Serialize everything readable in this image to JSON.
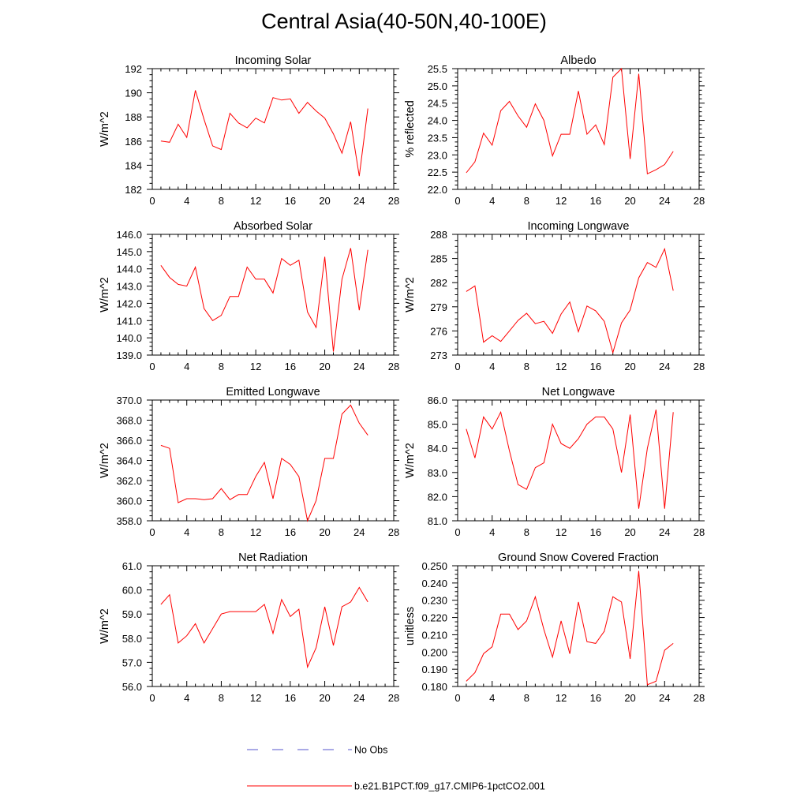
{
  "figure": {
    "title": "Central Asia(40-50N,40-100E)"
  },
  "legend": {
    "entries": [
      {
        "label": "No Obs",
        "color": "#5555cc",
        "style": "dashed"
      },
      {
        "label": "b.e21.B1PCT.f09_g17.CMIP6-1pctCO2.001",
        "color": "#ff0000",
        "style": "solid"
      }
    ]
  },
  "chart_data": [
    {
      "type": "line",
      "title": "Incoming Solar",
      "xlabel": "",
      "ylabel": "W/m^2",
      "xlim": [
        0,
        28
      ],
      "ylim": [
        182,
        192
      ],
      "xticks": [
        "0",
        "4",
        "8",
        "12",
        "16",
        "20",
        "24",
        "28"
      ],
      "yticks": [
        "182",
        "184",
        "186",
        "188",
        "190",
        "192"
      ],
      "series": [
        {
          "color": "#ff0000",
          "x": [
            1,
            2,
            3,
            4,
            5,
            6,
            7,
            8,
            9,
            10,
            11,
            12,
            13,
            14,
            15,
            16,
            17,
            18,
            19,
            20,
            21,
            22,
            23,
            24,
            25
          ],
          "values": [
            186.0,
            185.9,
            187.4,
            186.3,
            190.2,
            187.8,
            185.6,
            185.3,
            188.3,
            187.5,
            187.1,
            187.9,
            187.5,
            189.6,
            189.4,
            189.5,
            188.3,
            189.2,
            188.5,
            187.9,
            186.6,
            185.0,
            187.6,
            183.1,
            188.7
          ]
        }
      ]
    },
    {
      "type": "line",
      "title": "Albedo",
      "xlabel": "",
      "ylabel": "% reflected",
      "xlim": [
        0,
        28
      ],
      "ylim": [
        22.0,
        25.5
      ],
      "xticks": [
        "0",
        "4",
        "8",
        "12",
        "16",
        "20",
        "24",
        "28"
      ],
      "yticks": [
        "22.0",
        "22.5",
        "23.0",
        "23.5",
        "24.0",
        "24.5",
        "25.0",
        "25.5"
      ],
      "series": [
        {
          "color": "#ff0000",
          "x": [
            1,
            2,
            3,
            4,
            5,
            6,
            7,
            8,
            9,
            10,
            11,
            12,
            13,
            14,
            15,
            16,
            17,
            18,
            19,
            20,
            21,
            22,
            23,
            24,
            25
          ],
          "values": [
            22.48,
            22.8,
            23.63,
            23.28,
            24.28,
            24.55,
            24.13,
            23.8,
            24.48,
            24.0,
            22.97,
            23.6,
            23.6,
            24.85,
            23.6,
            23.87,
            23.3,
            25.25,
            25.5,
            22.88,
            25.35,
            22.45,
            22.57,
            22.72,
            23.1
          ]
        }
      ]
    },
    {
      "type": "line",
      "title": "Absorbed Solar",
      "xlabel": "",
      "ylabel": "W/m^2",
      "xlim": [
        0,
        28
      ],
      "ylim": [
        139.0,
        146.0
      ],
      "xticks": [
        "0",
        "4",
        "8",
        "12",
        "16",
        "20",
        "24",
        "28"
      ],
      "yticks": [
        "139.0",
        "140.0",
        "141.0",
        "142.0",
        "143.0",
        "144.0",
        "145.0",
        "146.0"
      ],
      "series": [
        {
          "color": "#ff0000",
          "x": [
            1,
            2,
            3,
            4,
            5,
            6,
            7,
            8,
            9,
            10,
            11,
            12,
            13,
            14,
            15,
            16,
            17,
            18,
            19,
            20,
            21,
            22,
            23,
            24,
            25
          ],
          "values": [
            144.2,
            143.5,
            143.1,
            143.0,
            144.1,
            141.7,
            141.0,
            141.3,
            142.4,
            142.4,
            144.1,
            143.4,
            143.4,
            142.6,
            144.6,
            144.2,
            144.5,
            141.5,
            140.6,
            144.7,
            139.2,
            143.4,
            145.2,
            141.6,
            145.1
          ]
        }
      ]
    },
    {
      "type": "line",
      "title": "Incoming Longwave",
      "xlabel": "",
      "ylabel": "W/m^2",
      "xlim": [
        0,
        28
      ],
      "ylim": [
        273,
        288
      ],
      "xticks": [
        "0",
        "4",
        "8",
        "12",
        "16",
        "20",
        "24",
        "28"
      ],
      "yticks": [
        "273",
        "276",
        "279",
        "282",
        "285",
        "288"
      ],
      "series": [
        {
          "color": "#ff0000",
          "x": [
            1,
            2,
            3,
            4,
            5,
            6,
            7,
            8,
            9,
            10,
            11,
            12,
            13,
            14,
            15,
            16,
            17,
            18,
            19,
            20,
            21,
            22,
            23,
            24,
            25
          ],
          "values": [
            280.9,
            281.6,
            274.6,
            275.4,
            274.7,
            276.0,
            277.3,
            278.2,
            276.9,
            277.2,
            275.7,
            278.1,
            279.6,
            275.9,
            279.1,
            278.5,
            277.2,
            273.3,
            277.0,
            278.6,
            282.6,
            284.5,
            283.9,
            286.2,
            281.0
          ]
        }
      ]
    },
    {
      "type": "line",
      "title": "Emitted Longwave",
      "xlabel": "",
      "ylabel": "W/m^2",
      "xlim": [
        0,
        28
      ],
      "ylim": [
        358.0,
        370.0
      ],
      "xticks": [
        "0",
        "4",
        "8",
        "12",
        "16",
        "20",
        "24",
        "28"
      ],
      "yticks": [
        "358.0",
        "360.0",
        "362.0",
        "364.0",
        "366.0",
        "368.0",
        "370.0"
      ],
      "series": [
        {
          "color": "#ff0000",
          "x": [
            1,
            2,
            3,
            4,
            5,
            6,
            7,
            8,
            9,
            10,
            11,
            12,
            13,
            14,
            15,
            16,
            17,
            18,
            19,
            20,
            21,
            22,
            23,
            24,
            25
          ],
          "values": [
            365.5,
            365.2,
            359.8,
            360.2,
            360.2,
            360.1,
            360.2,
            361.2,
            360.1,
            360.6,
            360.6,
            362.4,
            363.8,
            360.2,
            364.2,
            363.6,
            362.4,
            358.0,
            360.0,
            364.2,
            364.2,
            368.6,
            369.5,
            367.7,
            366.5
          ]
        }
      ]
    },
    {
      "type": "line",
      "title": "Net Longwave",
      "xlabel": "",
      "ylabel": "W/m^2",
      "xlim": [
        0,
        28
      ],
      "ylim": [
        81.0,
        86.0
      ],
      "xticks": [
        "0",
        "4",
        "8",
        "12",
        "16",
        "20",
        "24",
        "28"
      ],
      "yticks": [
        "81.0",
        "82.0",
        "83.0",
        "84.0",
        "85.0",
        "86.0"
      ],
      "series": [
        {
          "color": "#ff0000",
          "x": [
            1,
            2,
            3,
            4,
            5,
            6,
            7,
            8,
            9,
            10,
            11,
            12,
            13,
            14,
            15,
            16,
            17,
            18,
            19,
            20,
            21,
            22,
            23,
            24,
            25
          ],
          "values": [
            84.8,
            83.6,
            85.3,
            84.8,
            85.5,
            83.9,
            82.5,
            82.3,
            83.2,
            83.4,
            85.0,
            84.2,
            84.0,
            84.4,
            85.0,
            85.3,
            85.3,
            84.8,
            83.0,
            85.4,
            81.5,
            84.0,
            85.6,
            81.5,
            85.5
          ]
        }
      ]
    },
    {
      "type": "line",
      "title": "Net Radiation",
      "xlabel": "",
      "ylabel": "W/m^2",
      "xlim": [
        0,
        28
      ],
      "ylim": [
        56.0,
        61.0
      ],
      "xticks": [
        "0",
        "4",
        "8",
        "12",
        "16",
        "20",
        "24",
        "28"
      ],
      "yticks": [
        "56.0",
        "57.0",
        "58.0",
        "59.0",
        "60.0",
        "61.0"
      ],
      "series": [
        {
          "color": "#ff0000",
          "x": [
            1,
            2,
            3,
            4,
            5,
            6,
            7,
            8,
            9,
            10,
            11,
            12,
            13,
            14,
            15,
            16,
            17,
            18,
            19,
            20,
            21,
            22,
            23,
            24,
            25
          ],
          "values": [
            59.4,
            59.8,
            57.8,
            58.1,
            58.6,
            57.8,
            58.4,
            59.0,
            59.1,
            59.1,
            59.1,
            59.1,
            59.4,
            58.2,
            59.6,
            58.9,
            59.2,
            56.8,
            57.6,
            59.3,
            57.7,
            59.3,
            59.5,
            60.1,
            59.5
          ]
        }
      ]
    },
    {
      "type": "line",
      "title": "Ground Snow Covered Fraction",
      "xlabel": "",
      "ylabel": "unitless",
      "xlim": [
        0,
        28
      ],
      "ylim": [
        0.18,
        0.25
      ],
      "xticks": [
        "0",
        "4",
        "8",
        "12",
        "16",
        "20",
        "24",
        "28"
      ],
      "yticks": [
        "0.180",
        "0.190",
        "0.200",
        "0.210",
        "0.220",
        "0.230",
        "0.240",
        "0.250"
      ],
      "series": [
        {
          "color": "#ff0000",
          "x": [
            1,
            2,
            3,
            4,
            5,
            6,
            7,
            8,
            9,
            10,
            11,
            12,
            13,
            14,
            15,
            16,
            17,
            18,
            19,
            20,
            21,
            22,
            23,
            24,
            25
          ],
          "values": [
            0.183,
            0.188,
            0.199,
            0.203,
            0.222,
            0.222,
            0.213,
            0.218,
            0.232,
            0.213,
            0.197,
            0.218,
            0.199,
            0.229,
            0.206,
            0.205,
            0.212,
            0.232,
            0.229,
            0.196,
            0.247,
            0.181,
            0.183,
            0.201,
            0.205
          ]
        }
      ]
    }
  ]
}
